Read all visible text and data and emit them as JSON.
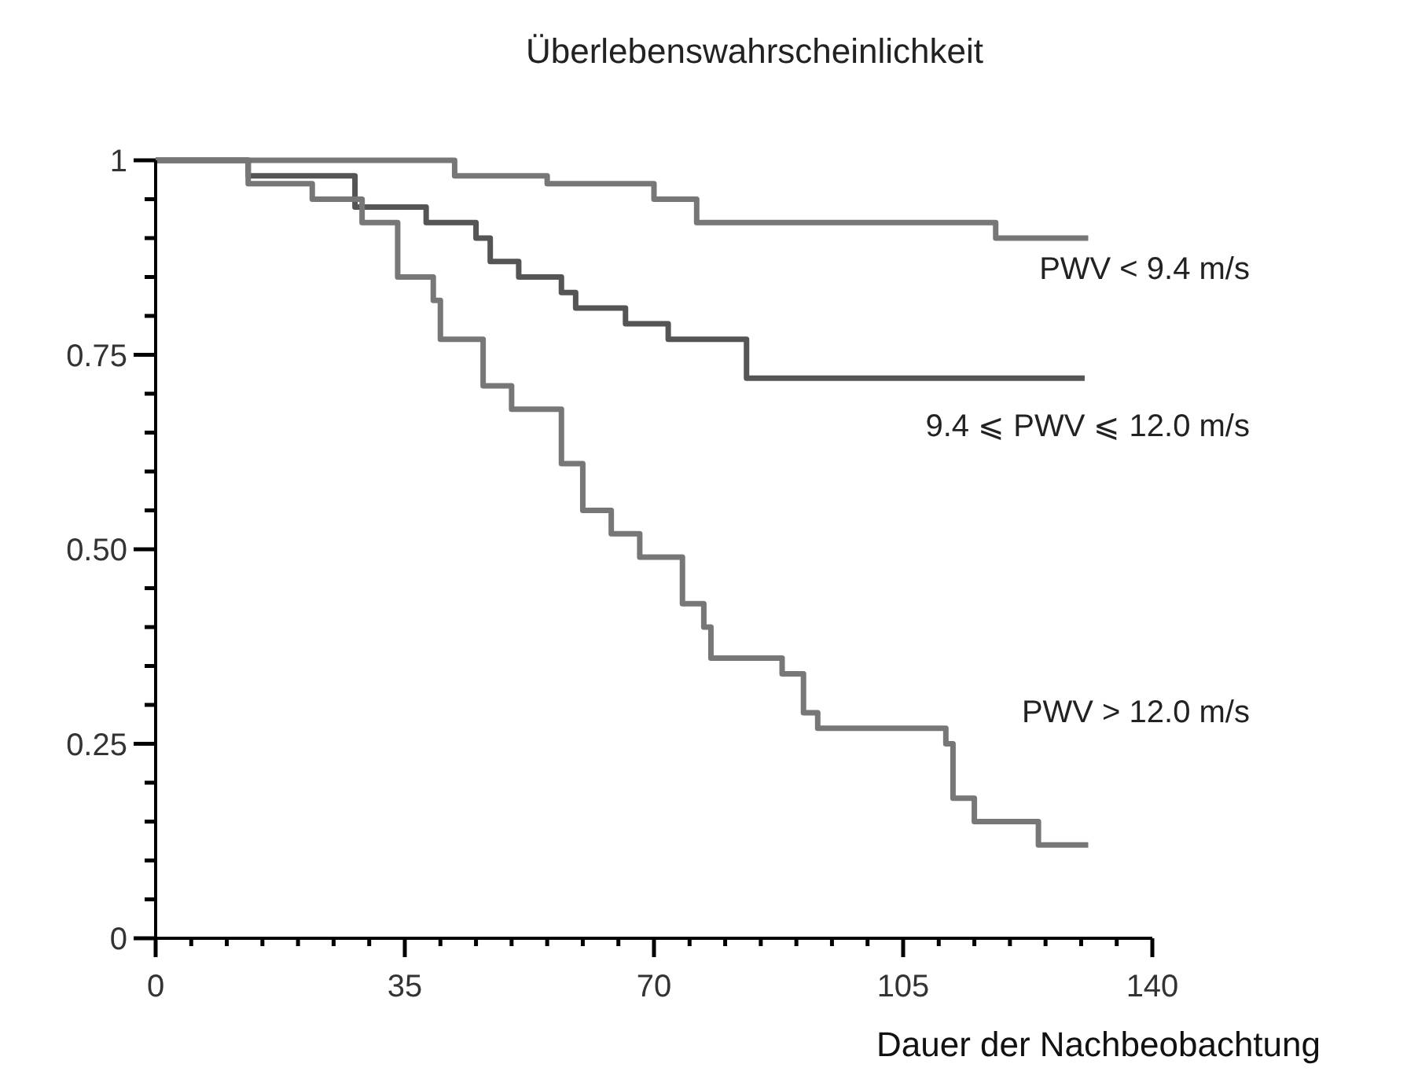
{
  "chart_data": {
    "type": "step",
    "title": "Überlebenswahrscheinlichkeit",
    "xlabel": "Dauer der Nachbeobachtung",
    "xlim": [
      0,
      140
    ],
    "ylim": [
      0,
      1
    ],
    "xticks": [
      0,
      {
        "value": 5,
        "label": null
      },
      {
        "value": 10,
        "label": null
      },
      {
        "value": 15,
        "label": null
      },
      {
        "value": 20,
        "label": null
      },
      {
        "value": 25,
        "label": null
      },
      {
        "value": 30,
        "label": null
      },
      35,
      {
        "value": 40,
        "label": null
      },
      {
        "value": 45,
        "label": null
      },
      {
        "value": 50,
        "label": null
      },
      {
        "value": 55,
        "label": null
      },
      {
        "value": 60,
        "label": null
      },
      {
        "value": 65,
        "label": null
      },
      70,
      {
        "value": 75,
        "label": null
      },
      {
        "value": 80,
        "label": null
      },
      {
        "value": 85,
        "label": null
      },
      {
        "value": 90,
        "label": null
      },
      {
        "value": 95,
        "label": null
      },
      {
        "value": 100,
        "label": null
      },
      105,
      {
        "value": 110,
        "label": null
      },
      {
        "value": 115,
        "label": null
      },
      {
        "value": 120,
        "label": null
      },
      {
        "value": 125,
        "label": null
      },
      {
        "value": 130,
        "label": null
      },
      {
        "value": 135,
        "label": null
      },
      140
    ],
    "yticks": [
      0,
      {
        "value": 0.05,
        "label": null
      },
      {
        "value": 0.1,
        "label": null
      },
      {
        "value": 0.15,
        "label": null
      },
      {
        "value": 0.2,
        "label": null
      },
      {
        "value": 0.25,
        "label": "0.25"
      },
      {
        "value": 0.3,
        "label": null
      },
      {
        "value": 0.35,
        "label": null
      },
      {
        "value": 0.4,
        "label": null
      },
      {
        "value": 0.45,
        "label": null
      },
      {
        "value": 0.5,
        "label": "0.50"
      },
      {
        "value": 0.55,
        "label": null
      },
      {
        "value": 0.6,
        "label": null
      },
      {
        "value": 0.65,
        "label": null
      },
      {
        "value": 0.7,
        "label": null
      },
      {
        "value": 0.75,
        "label": "0.75"
      },
      {
        "value": 0.8,
        "label": null
      },
      {
        "value": 0.85,
        "label": null
      },
      {
        "value": 0.9,
        "label": null
      },
      {
        "value": 0.95,
        "label": null
      },
      1
    ],
    "grid": false,
    "legend": false,
    "marker": "none",
    "line_style": "solid",
    "series": [
      {
        "name": "PWV < 9.4 m/s",
        "color": "#777777",
        "x": [
          0,
          42,
          55,
          70,
          76,
          118,
          131
        ],
        "values": [
          1,
          0.98,
          0.97,
          0.95,
          0.92,
          0.9,
          0.9
        ]
      },
      {
        "name": "9.4 ⩽ PWV ⩽ 12.0 m/s",
        "color": "#555555",
        "x": [
          0,
          13,
          28,
          38,
          45,
          47,
          51,
          57,
          59,
          66,
          72,
          83,
          130.5
        ],
        "values": [
          1,
          0.98,
          0.94,
          0.92,
          0.9,
          0.87,
          0.85,
          0.83,
          0.81,
          0.79,
          0.77,
          0.72,
          0.72
        ]
      },
      {
        "name": "PWV > 12.0 m/s",
        "color": "#777777",
        "x": [
          0,
          13,
          22,
          29,
          34,
          39,
          40,
          46,
          50,
          57,
          60,
          64,
          68,
          74,
          77,
          78,
          88,
          91,
          93,
          111,
          112,
          115,
          124,
          131
        ],
        "values": [
          1,
          0.97,
          0.95,
          0.92,
          0.85,
          0.82,
          0.77,
          0.71,
          0.68,
          0.61,
          0.55,
          0.52,
          0.49,
          0.43,
          0.4,
          0.36,
          0.34,
          0.29,
          0.27,
          0.25,
          0.18,
          0.15,
          0.12,
          0.12
        ]
      }
    ]
  }
}
